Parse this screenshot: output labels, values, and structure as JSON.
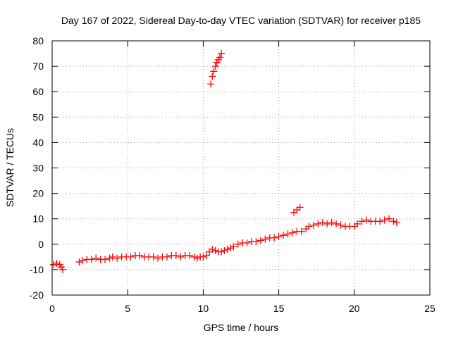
{
  "chart_data": {
    "type": "scatter",
    "title": "Day 167 of 2022, Sidereal Day-to-day VTEC variation (SDTVAR) for receiver p185",
    "xlabel": "GPS time / hours",
    "ylabel": "SDTVAR / TECUs",
    "xlim": [
      0,
      25
    ],
    "ylim": [
      -20,
      80
    ],
    "xticks": [
      0,
      5,
      10,
      15,
      20,
      25
    ],
    "yticks": [
      -20,
      -10,
      0,
      10,
      20,
      30,
      40,
      50,
      60,
      70,
      80
    ],
    "grid": true,
    "marker": "plus",
    "color": "#ff0000",
    "series": [
      {
        "name": "p185",
        "x": [
          0.1,
          0.3,
          0.5,
          0.6,
          0.7,
          1.8,
          2.0,
          2.3,
          2.6,
          2.9,
          3.2,
          3.5,
          3.8,
          4.0,
          4.3,
          4.6,
          4.9,
          5.2,
          5.5,
          5.8,
          6.1,
          6.4,
          6.7,
          7.0,
          7.3,
          7.6,
          7.9,
          8.2,
          8.5,
          8.8,
          9.1,
          9.4,
          9.6,
          9.8,
          10.0,
          10.2,
          10.4,
          10.6,
          10.8,
          11.0,
          11.2,
          11.4,
          11.6,
          11.8,
          12.0,
          12.3,
          12.6,
          12.9,
          13.2,
          13.5,
          13.8,
          14.1,
          14.4,
          14.7,
          15.0,
          15.3,
          15.6,
          15.9,
          16.2,
          16.5,
          16.0,
          16.2,
          16.4,
          16.8,
          17.0,
          17.3,
          17.6,
          17.9,
          18.2,
          18.5,
          18.8,
          19.1,
          19.4,
          19.7,
          20.0,
          20.2,
          20.5,
          20.8,
          21.1,
          21.4,
          21.7,
          22.0,
          22.3,
          22.6,
          22.8,
          10.5,
          10.6,
          10.7,
          10.8,
          10.9,
          11.0,
          11.1,
          11.2
        ],
        "y": [
          -8,
          -7.5,
          -8,
          -9,
          -10,
          -7,
          -6.5,
          -6,
          -6,
          -5.5,
          -6,
          -6,
          -5.5,
          -5,
          -5.5,
          -5,
          -5,
          -5,
          -4.5,
          -4.5,
          -5,
          -5,
          -5,
          -5.5,
          -5,
          -5,
          -4.5,
          -4.5,
          -5,
          -4.5,
          -4.5,
          -5,
          -5.5,
          -5,
          -5,
          -4.5,
          -3,
          -2,
          -2.5,
          -3,
          -3,
          -2.5,
          -2,
          -1.5,
          -1,
          0,
          0.5,
          0.5,
          1,
          1,
          1.5,
          2,
          2.5,
          2.5,
          3,
          3.5,
          4,
          4.5,
          5,
          5,
          12.5,
          13.5,
          14.5,
          6,
          7,
          7.5,
          8,
          8.5,
          8,
          8.5,
          8,
          7.5,
          7,
          7,
          7,
          8,
          9,
          9.5,
          9,
          9,
          9,
          9.5,
          10,
          9,
          8.5,
          63,
          66,
          68,
          70,
          71.5,
          72.5,
          73.5,
          75
        ]
      }
    ]
  }
}
